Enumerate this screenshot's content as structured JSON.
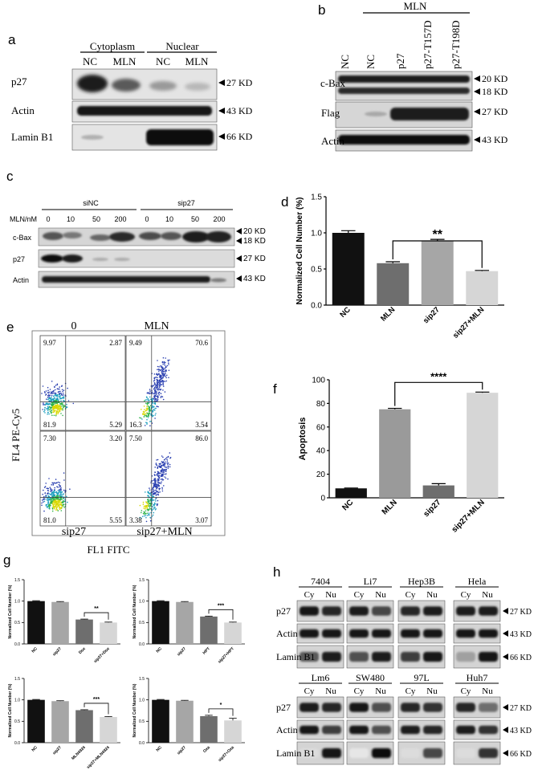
{
  "panels": {
    "a": {
      "letter": "a",
      "groups": [
        "Cytoplasm",
        "Nuclear"
      ],
      "lanes": [
        "NC",
        "MLN",
        "NC",
        "MLN"
      ],
      "rows": [
        {
          "name": "p27",
          "kd": "27 KD"
        },
        {
          "name": "Actin",
          "kd": "43 KD"
        },
        {
          "name": "Lamin B1",
          "kd": "66 KD"
        }
      ]
    },
    "b": {
      "letter": "b",
      "group": "MLN",
      "lanes": [
        "NC",
        "NC",
        "p27",
        "p27-T157D",
        "p27-T198D"
      ],
      "rows": [
        {
          "name": "c-Bax",
          "kd": "20 KD",
          "kd2": "18 KD"
        },
        {
          "name": "Flag",
          "kd": "27 KD"
        },
        {
          "name": "Actin",
          "kd": "43 KD"
        }
      ]
    },
    "c": {
      "letter": "c",
      "groups": [
        "siNC",
        "sip27"
      ],
      "dose_label": "MLN/nM",
      "doses": [
        "0",
        "10",
        "50",
        "200",
        "0",
        "10",
        "50",
        "200"
      ],
      "rows": [
        {
          "name": "c-Bax",
          "kd": "20 KD",
          "kd2": "18 KD"
        },
        {
          "name": "p27",
          "kd": "27 KD"
        },
        {
          "name": "Actin",
          "kd": "43 KD"
        }
      ]
    },
    "e": {
      "letter": "e",
      "col_titles": [
        "0",
        "MLN"
      ],
      "bottom_titles": [
        "sip27",
        "sip27+MLN"
      ],
      "ylabel": "FL4 PE-Cy5",
      "xlabel": "FL1 FITC",
      "quadrants": [
        [
          "9.97",
          "2.87",
          "81.9",
          "5.29"
        ],
        [
          "9.49",
          "70.6",
          "16.3",
          "3.54"
        ],
        [
          "7.30",
          "3.20",
          "81.0",
          "5.55"
        ],
        [
          "7.50",
          "86.0",
          "3.38",
          "3.07"
        ]
      ]
    },
    "h": {
      "letter": "h",
      "top_cells": [
        "7404",
        "Li7",
        "Hep3B",
        "Hela"
      ],
      "bottom_cells": [
        "Lm6",
        "SW480",
        "97L",
        "Huh7"
      ],
      "lane_labels": [
        "Cy",
        "Nu"
      ],
      "rows": [
        {
          "name": "p27",
          "kd": "27 KD"
        },
        {
          "name": "Actin",
          "kd": "43 KD"
        },
        {
          "name": "Lamin B1",
          "kd": "66 KD"
        }
      ]
    },
    "g": {
      "letter": "g"
    }
  },
  "chart_data": [
    {
      "id": "d",
      "letter": "d",
      "type": "bar",
      "categories": [
        "NC",
        "MLN",
        "sip27",
        "sip27+MLN"
      ],
      "values": [
        1.0,
        0.58,
        0.89,
        0.47
      ],
      "errors": [
        0.03,
        0.02,
        0.02,
        0.01
      ],
      "ylabel": "Normalized Cell Number (%)",
      "ylim": [
        0,
        1.5
      ],
      "yticks": [
        "0.0",
        "0.5",
        "1.0",
        "1.5"
      ],
      "significance": {
        "from": 1,
        "to": 3,
        "label": "**"
      },
      "colors": [
        "#111111",
        "#6e6e6e",
        "#a6a6a6",
        "#d6d6d6"
      ]
    },
    {
      "id": "f",
      "letter": "f",
      "type": "bar",
      "categories": [
        "NC",
        "MLN",
        "sip27",
        "sip27+MLN"
      ],
      "values": [
        8,
        75,
        10.5,
        89
      ],
      "errors": [
        0.3,
        0.8,
        1.5,
        0.6
      ],
      "ylabel": "Apoptosis",
      "ylim": [
        0,
        100
      ],
      "yticks": [
        "0",
        "20",
        "40",
        "60",
        "80",
        "100"
      ],
      "significance": {
        "from": 1,
        "to": 3,
        "label": "****"
      },
      "colors": [
        "#111111",
        "#9a9a9a",
        "#6e6e6e",
        "#d6d6d6"
      ]
    },
    {
      "id": "g1",
      "type": "bar",
      "categories": [
        "NC",
        "sip27",
        "Dox",
        "sip27+Dox"
      ],
      "values": [
        1.0,
        0.98,
        0.57,
        0.5
      ],
      "errors": [
        0.01,
        0.01,
        0.01,
        0.01
      ],
      "ylabel": "Normalized Cell Number (%)",
      "ylim": [
        0,
        1.5
      ],
      "yticks": [
        "0.0",
        "0.5",
        "1.0",
        "1.5"
      ],
      "significance": {
        "from": 2,
        "to": 3,
        "label": "**"
      },
      "colors": [
        "#111111",
        "#a6a6a6",
        "#6e6e6e",
        "#d6d6d6"
      ]
    },
    {
      "id": "g2",
      "type": "bar",
      "categories": [
        "NC",
        "sip27",
        "HPT",
        "sip27+HPT"
      ],
      "values": [
        1.0,
        0.98,
        0.64,
        0.5
      ],
      "errors": [
        0.01,
        0.01,
        0.01,
        0.01
      ],
      "ylabel": "Normalized Cell Number (%)",
      "ylim": [
        0,
        1.5
      ],
      "yticks": [
        "0.0",
        "0.5",
        "1.0",
        "1.5"
      ],
      "significance": {
        "from": 2,
        "to": 3,
        "label": "***"
      },
      "colors": [
        "#111111",
        "#a6a6a6",
        "#6e6e6e",
        "#d6d6d6"
      ]
    },
    {
      "id": "g3",
      "type": "bar",
      "categories": [
        "NC",
        "sip27",
        "MLN4924",
        "sip27+MLN4924"
      ],
      "values": [
        1.0,
        0.97,
        0.76,
        0.6
      ],
      "errors": [
        0.01,
        0.01,
        0.01,
        0.01
      ],
      "ylabel": "Normalized Cell Number (%)",
      "ylim": [
        0,
        1.5
      ],
      "yticks": [
        "0.0",
        "0.5",
        "1.0",
        "1.5"
      ],
      "significance": {
        "from": 2,
        "to": 3,
        "label": "***"
      },
      "colors": [
        "#111111",
        "#a6a6a6",
        "#6e6e6e",
        "#d6d6d6"
      ]
    },
    {
      "id": "g4",
      "type": "bar",
      "categories": [
        "NC",
        "sip27",
        "Oxa",
        "sip27+Oxa"
      ],
      "values": [
        1.0,
        0.98,
        0.62,
        0.52
      ],
      "errors": [
        0.01,
        0.01,
        0.02,
        0.05
      ],
      "ylabel": "Normalized Cell Number (%)",
      "ylim": [
        0,
        1.5
      ],
      "yticks": [
        "0.0",
        "0.5",
        "1.0",
        "1.5"
      ],
      "significance": {
        "from": 2,
        "to": 3,
        "label": "*"
      },
      "colors": [
        "#111111",
        "#a6a6a6",
        "#6e6e6e",
        "#d6d6d6"
      ]
    }
  ]
}
